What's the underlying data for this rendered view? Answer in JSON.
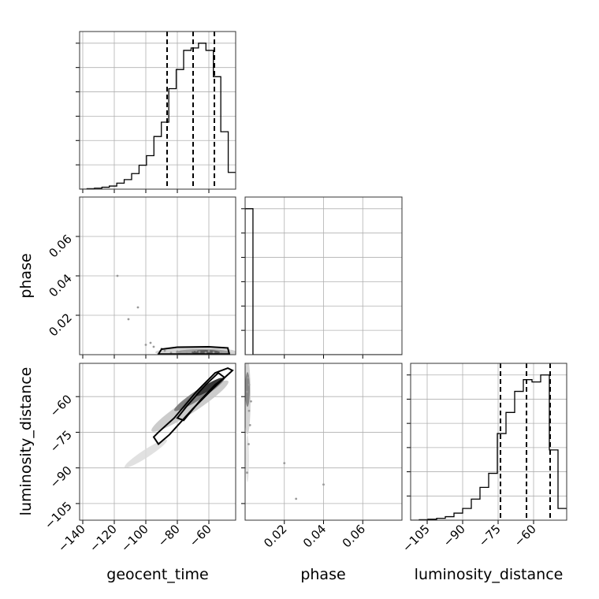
{
  "chart_data": {
    "type": "corner",
    "parameters": [
      "geocent_time",
      "phase",
      "luminosity_distance"
    ],
    "axis_labels": {
      "x": [
        "geocent_time",
        "phase",
        "luminosity_distance"
      ],
      "y_row1": "phase",
      "y_row2": "luminosity_distance"
    },
    "ranges": {
      "geocent_time": [
        -142,
        -43
      ],
      "phase": [
        0.0,
        0.08
      ],
      "luminosity_distance": [
        -112,
        -46
      ]
    },
    "ticks": {
      "geocent_time": [
        -140,
        -120,
        -100,
        -80,
        -60
      ],
      "phase": [
        0.02,
        0.04,
        0.06
      ],
      "luminosity_distance": [
        -105,
        -90,
        -75,
        -60
      ]
    },
    "tick_labels": {
      "geocent_time": [
        "−140",
        "−120",
        "−100",
        "−80",
        "−60"
      ],
      "phase": [
        "0.02",
        "0.04",
        "0.06"
      ],
      "luminosity_distance": [
        "−105",
        "−90",
        "−75",
        "−60"
      ]
    },
    "histograms": {
      "geocent_time": {
        "range": [
          -142,
          -43
        ],
        "counts": [
          0,
          0.2,
          0.4,
          0.8,
          1.3,
          2.5,
          4,
          6.5,
          10,
          14,
          22,
          28,
          42,
          50,
          58,
          59,
          61,
          58,
          47,
          24,
          7
        ],
        "quantiles": [
          -86.5,
          -70,
          -56.5
        ]
      },
      "phase": {
        "range": [
          0.0,
          0.08
        ],
        "counts": [
          100,
          0,
          0,
          0,
          0,
          0,
          0,
          0,
          0,
          0,
          0,
          0,
          0,
          0,
          0,
          0,
          0,
          0,
          0,
          0
        ],
        "quantiles": []
      },
      "luminosity_distance": {
        "range": [
          -112,
          -46
        ],
        "counts": [
          0,
          0.2,
          0.4,
          0.8,
          1.5,
          3,
          5,
          9,
          14,
          20,
          37,
          46,
          55,
          60,
          59,
          62,
          30,
          5
        ],
        "quantiles": [
          -74,
          -63,
          -53
        ]
      }
    },
    "scatter": {
      "geocent_time_vs_phase": {
        "x": [
          -118,
          -111,
          -97,
          -95,
          -105,
          -88,
          -84,
          -78,
          -74,
          -68,
          -62,
          -57,
          -52,
          -48,
          -90,
          -70,
          -80,
          -66,
          -60,
          -100
        ],
        "y": [
          0.04,
          0.018,
          0.006,
          0.004,
          0.024,
          0.002,
          0.001,
          0.0015,
          0.001,
          0.002,
          0.001,
          0.0012,
          0.001,
          0.0008,
          0.003,
          0.002,
          0.0016,
          0.0014,
          0.0018,
          0.005
        ]
      },
      "phase_vs_luminosity_distance": {
        "x": [
          0.0015,
          0.002,
          0.001,
          0.003,
          0.002,
          0.0025,
          0.0018,
          0.001,
          0.02,
          0.04,
          0.026
        ],
        "y": [
          -52,
          -55,
          -58,
          -62,
          -66,
          -72,
          -80,
          -92,
          -88,
          -97,
          -103
        ]
      }
    },
    "grid": true
  }
}
